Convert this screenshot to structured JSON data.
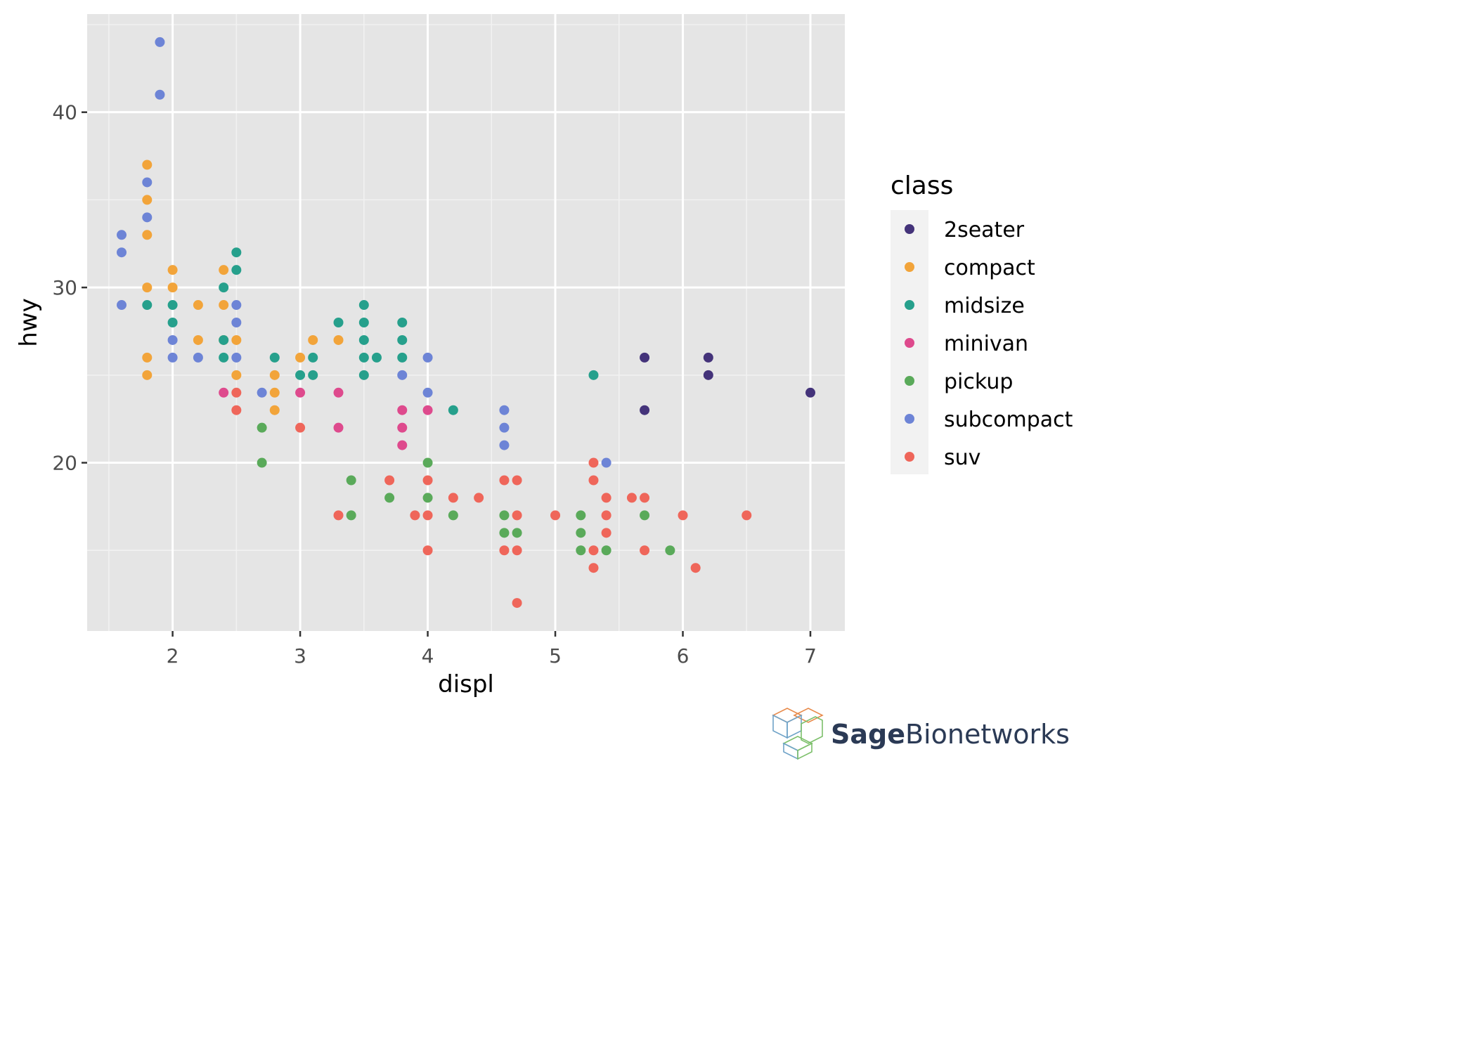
{
  "chart_data": {
    "type": "scatter",
    "title": "",
    "xlabel": "displ",
    "ylabel": "hwy",
    "xlim": [
      1.33,
      7.27
    ],
    "ylim": [
      10.4,
      45.6
    ],
    "x_ticks": [
      2,
      3,
      4,
      5,
      6,
      7
    ],
    "y_ticks": [
      20,
      30,
      40
    ],
    "grid": true,
    "legend": {
      "title": "class",
      "position": "right"
    },
    "series": [
      {
        "name": "2seater",
        "color": "#44337a",
        "points": [
          [
            5.7,
            26
          ],
          [
            5.7,
            23
          ],
          [
            6.2,
            26
          ],
          [
            6.2,
            25
          ],
          [
            7.0,
            24
          ]
        ]
      },
      {
        "name": "compact",
        "color": "#f2a43a",
        "points": [
          [
            1.8,
            37
          ],
          [
            1.8,
            35
          ],
          [
            1.8,
            33
          ],
          [
            1.8,
            30
          ],
          [
            1.8,
            26
          ],
          [
            1.8,
            25
          ],
          [
            2.0,
            31
          ],
          [
            2.0,
            30
          ],
          [
            2.2,
            29
          ],
          [
            2.2,
            27
          ],
          [
            2.4,
            31
          ],
          [
            2.4,
            29
          ],
          [
            2.4,
            27
          ],
          [
            2.5,
            27
          ],
          [
            2.5,
            25
          ],
          [
            2.8,
            25
          ],
          [
            2.8,
            24
          ],
          [
            2.8,
            23
          ],
          [
            3.0,
            26
          ],
          [
            3.1,
            27
          ],
          [
            3.3,
            27
          ]
        ]
      },
      {
        "name": "midsize",
        "color": "#26a08c",
        "points": [
          [
            1.8,
            29
          ],
          [
            2.0,
            29
          ],
          [
            2.0,
            28
          ],
          [
            2.4,
            30
          ],
          [
            2.4,
            27
          ],
          [
            2.4,
            26
          ],
          [
            2.5,
            32
          ],
          [
            2.5,
            31
          ],
          [
            2.8,
            26
          ],
          [
            3.0,
            25
          ],
          [
            3.1,
            26
          ],
          [
            3.1,
            25
          ],
          [
            3.3,
            28
          ],
          [
            3.5,
            29
          ],
          [
            3.5,
            28
          ],
          [
            3.5,
            27
          ],
          [
            3.5,
            26
          ],
          [
            3.5,
            25
          ],
          [
            3.6,
            26
          ],
          [
            3.8,
            28
          ],
          [
            3.8,
            27
          ],
          [
            3.8,
            26
          ],
          [
            4.2,
            23
          ],
          [
            5.3,
            25
          ]
        ]
      },
      {
        "name": "minivan",
        "color": "#de4a8d",
        "points": [
          [
            2.4,
            24
          ],
          [
            3.0,
            24
          ],
          [
            3.3,
            24
          ],
          [
            3.3,
            22
          ],
          [
            3.8,
            23
          ],
          [
            3.8,
            22
          ],
          [
            3.8,
            21
          ],
          [
            4.0,
            23
          ]
        ]
      },
      {
        "name": "pickup",
        "color": "#5aaa5a",
        "points": [
          [
            2.7,
            22
          ],
          [
            2.7,
            20
          ],
          [
            3.4,
            19
          ],
          [
            3.4,
            17
          ],
          [
            3.7,
            18
          ],
          [
            4.0,
            20
          ],
          [
            4.0,
            18
          ],
          [
            4.2,
            17
          ],
          [
            4.6,
            17
          ],
          [
            4.6,
            16
          ],
          [
            4.7,
            16
          ],
          [
            5.2,
            17
          ],
          [
            5.2,
            16
          ],
          [
            5.2,
            15
          ],
          [
            5.4,
            15
          ],
          [
            5.7,
            17
          ],
          [
            5.9,
            15
          ]
        ]
      },
      {
        "name": "subcompact",
        "color": "#6d84d6",
        "points": [
          [
            1.6,
            33
          ],
          [
            1.6,
            32
          ],
          [
            1.6,
            29
          ],
          [
            1.8,
            36
          ],
          [
            1.8,
            34
          ],
          [
            1.9,
            44
          ],
          [
            1.9,
            41
          ],
          [
            2.0,
            27
          ],
          [
            2.0,
            26
          ],
          [
            2.2,
            26
          ],
          [
            2.5,
            29
          ],
          [
            2.5,
            28
          ],
          [
            2.5,
            26
          ],
          [
            2.7,
            24
          ],
          [
            3.8,
            25
          ],
          [
            4.0,
            26
          ],
          [
            4.0,
            24
          ],
          [
            4.6,
            23
          ],
          [
            4.6,
            22
          ],
          [
            4.6,
            21
          ],
          [
            5.4,
            20
          ]
        ]
      },
      {
        "name": "suv",
        "color": "#ef665a",
        "points": [
          [
            2.5,
            24
          ],
          [
            2.5,
            23
          ],
          [
            3.0,
            22
          ],
          [
            3.3,
            17
          ],
          [
            3.7,
            19
          ],
          [
            3.9,
            17
          ],
          [
            4.0,
            19
          ],
          [
            4.0,
            17
          ],
          [
            4.0,
            15
          ],
          [
            4.2,
            18
          ],
          [
            4.4,
            18
          ],
          [
            4.6,
            19
          ],
          [
            4.6,
            15
          ],
          [
            4.7,
            19
          ],
          [
            4.7,
            17
          ],
          [
            4.7,
            15
          ],
          [
            4.7,
            12
          ],
          [
            5.0,
            17
          ],
          [
            5.3,
            20
          ],
          [
            5.3,
            19
          ],
          [
            5.3,
            15
          ],
          [
            5.3,
            14
          ],
          [
            5.4,
            18
          ],
          [
            5.4,
            17
          ],
          [
            5.4,
            16
          ],
          [
            5.6,
            18
          ],
          [
            5.7,
            18
          ],
          [
            5.7,
            15
          ],
          [
            6.0,
            17
          ],
          [
            6.1,
            14
          ],
          [
            6.5,
            17
          ]
        ]
      }
    ]
  },
  "logo": {
    "bold": "Sage",
    "light": "Bionetworks"
  }
}
